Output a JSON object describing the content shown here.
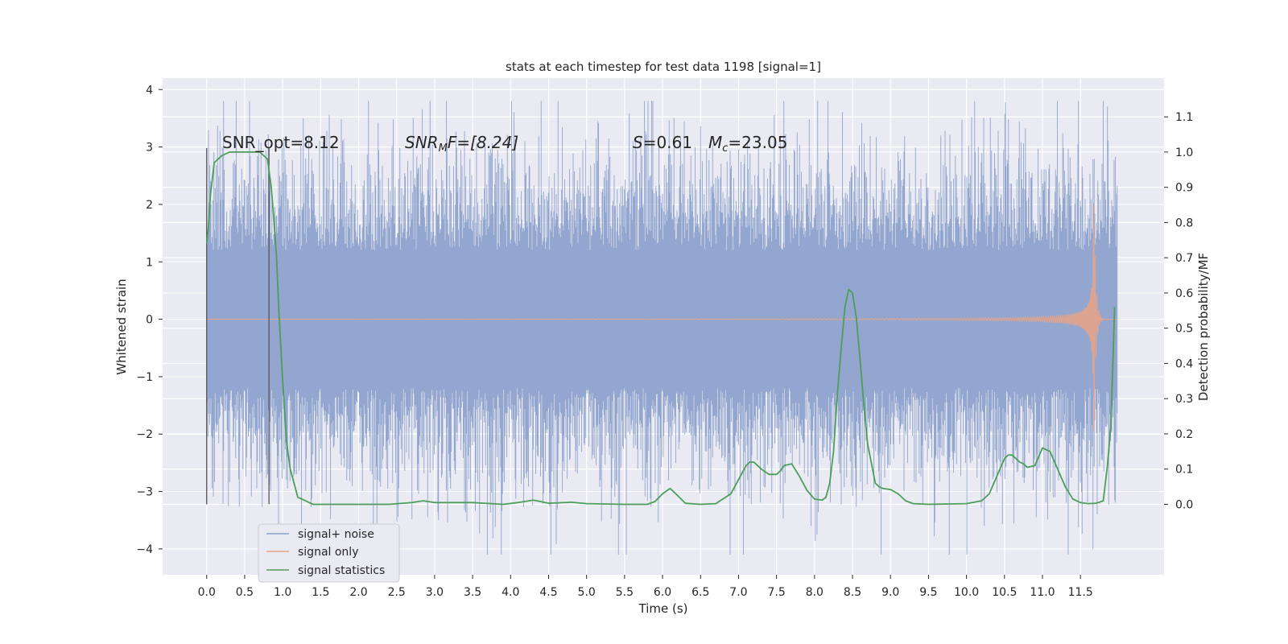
{
  "chart_data": {
    "type": "line",
    "title": "stats at each timestep for test data 1198 [signal=1]",
    "xlabel": "Time (s)",
    "ylabel": "Whitened strain",
    "y2label": "Detection probability/MF",
    "xlim": [
      -0.58,
      12.6
    ],
    "ylim": [
      -4.45,
      4.2
    ],
    "y2lim": [
      -0.2,
      1.21
    ],
    "xticks": [
      "0.0",
      "0.5",
      "1.0",
      "1.5",
      "2.0",
      "2.5",
      "3.0",
      "3.5",
      "4.0",
      "4.5",
      "5.0",
      "5.5",
      "6.0",
      "6.5",
      "7.0",
      "7.5",
      "8.0",
      "8.5",
      "9.0",
      "9.5",
      "10.0",
      "10.5",
      "11.0",
      "11.5"
    ],
    "yticks": [
      "4",
      "3",
      "2",
      "1",
      "0",
      "−1",
      "−2",
      "−3",
      "−4"
    ],
    "y2ticks": [
      "1.1",
      "1.0",
      "0.9",
      "0.8",
      "0.7",
      "0.6",
      "0.5",
      "0.4",
      "0.3",
      "0.2",
      "0.1",
      "0.0"
    ],
    "grid": true,
    "annotations": {
      "snr_opt_text": "SNR_opt=8.12",
      "snr_mf_prefix": "SNR",
      "snr_mf_sub": "M",
      "snr_mf_suffix": "F=[8.24]",
      "s_label": "S",
      "s_value": "=0.61",
      "mc_label": "M",
      "mc_sub": "c",
      "mc_value": "=23.05"
    },
    "vlines_x": [
      0.0,
      0.82
    ],
    "series": [
      {
        "name": "signal+ noise",
        "color": "#8da2cc",
        "description": "Whitened noisy strain from 0 to 11.99 s, amplitude roughly between -2.5 and 2.5 with peaks to about ±3.8"
      },
      {
        "name": "signal only",
        "color": "#e5a48a",
        "chirp": {
          "t_end": 11.68,
          "x_start": 0.0,
          "x_end": 11.99,
          "max_amp": 2.0
        }
      },
      {
        "name": "signal statistics",
        "color": "#4c9e5a",
        "axis": "right",
        "x": [
          0.0,
          0.02,
          0.05,
          0.1,
          0.2,
          0.3,
          0.45,
          0.6,
          0.7,
          0.75,
          0.8,
          0.85,
          0.88,
          0.92,
          0.95,
          1.0,
          1.05,
          1.1,
          1.2,
          1.4,
          1.8,
          2.4,
          2.7,
          2.85,
          3.0,
          3.5,
          3.9,
          4.1,
          4.3,
          4.5,
          4.8,
          5.0,
          5.5,
          5.8,
          5.9,
          6.0,
          6.1,
          6.15,
          6.3,
          6.5,
          6.7,
          6.9,
          7.0,
          7.1,
          7.15,
          7.2,
          7.3,
          7.4,
          7.5,
          7.55,
          7.6,
          7.7,
          7.8,
          7.9,
          8.0,
          8.1,
          8.15,
          8.2,
          8.25,
          8.3,
          8.35,
          8.4,
          8.45,
          8.5,
          8.55,
          8.6,
          8.65,
          8.7,
          8.8,
          8.85,
          8.9,
          9.0,
          9.1,
          9.2,
          9.3,
          9.5,
          10.0,
          10.2,
          10.3,
          10.4,
          10.5,
          10.55,
          10.6,
          10.7,
          10.75,
          10.8,
          10.9,
          11.0,
          11.1,
          11.2,
          11.3,
          11.4,
          11.5,
          11.6,
          11.7,
          11.75,
          11.8,
          11.85,
          11.9,
          11.95
        ],
        "values": [
          0.74,
          0.78,
          0.88,
          0.97,
          0.99,
          1.0,
          1.0,
          1.0,
          1.0,
          0.99,
          0.98,
          0.9,
          0.82,
          0.7,
          0.55,
          0.35,
          0.18,
          0.1,
          0.02,
          0.0,
          0.0,
          0.0,
          0.005,
          0.01,
          0.005,
          0.005,
          0.0,
          0.005,
          0.012,
          0.003,
          0.006,
          0.002,
          0.0,
          0.0,
          0.008,
          0.03,
          0.045,
          0.035,
          0.003,
          0.0,
          0.002,
          0.03,
          0.07,
          0.11,
          0.12,
          0.12,
          0.1,
          0.085,
          0.085,
          0.095,
          0.11,
          0.115,
          0.08,
          0.04,
          0.015,
          0.012,
          0.02,
          0.06,
          0.15,
          0.31,
          0.44,
          0.56,
          0.61,
          0.6,
          0.53,
          0.41,
          0.28,
          0.17,
          0.06,
          0.05,
          0.045,
          0.042,
          0.03,
          0.01,
          0.002,
          0.0,
          0.002,
          0.01,
          0.03,
          0.08,
          0.13,
          0.14,
          0.14,
          0.12,
          0.115,
          0.105,
          0.11,
          0.16,
          0.15,
          0.1,
          0.05,
          0.015,
          0.005,
          0.002,
          0.003,
          0.006,
          0.01,
          0.1,
          0.22,
          0.56
        ]
      }
    ],
    "legend": {
      "placement": "lower-left"
    }
  }
}
